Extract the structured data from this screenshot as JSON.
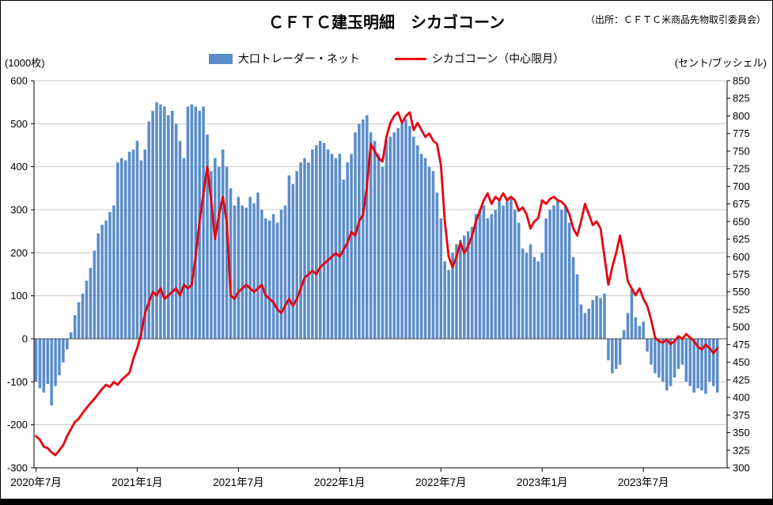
{
  "title": "ＣＦＴＣ建玉明細　シカゴコーン",
  "source_note": "（出所：ＣＦＴＣ米商品先物取引委員会）",
  "left_axis_unit": "(1000枚)",
  "right_axis_unit": "(セント/ブッシェル)",
  "legend": {
    "bars_label": "大口トレーダー・ネット",
    "line_label": "シカゴコーン（中心限月）"
  },
  "chart_data": {
    "type": "combo",
    "x_slots": 178,
    "x_ticks": [
      {
        "label": "2020年7月",
        "index": 0
      },
      {
        "label": "2021年1月",
        "index": 26
      },
      {
        "label": "2021年7月",
        "index": 52
      },
      {
        "label": "2022年1月",
        "index": 78
      },
      {
        "label": "2022年7月",
        "index": 104
      },
      {
        "label": "2023年1月",
        "index": 130
      },
      {
        "label": "2023年7月",
        "index": 156
      }
    ],
    "left_axis": {
      "min": -300,
      "max": 600,
      "step": 100,
      "unit": "(1000枚)",
      "ticks": [
        600,
        500,
        400,
        300,
        200,
        100,
        0,
        -100,
        -200,
        -300
      ]
    },
    "right_axis": {
      "min": 300,
      "max": 850,
      "step": 25,
      "unit": "(セント/ブッシェル)",
      "ticks": [
        850,
        825,
        800,
        775,
        750,
        725,
        700,
        675,
        650,
        625,
        600,
        575,
        550,
        525,
        500,
        475,
        450,
        425,
        400,
        375,
        350,
        325,
        300
      ]
    },
    "series": [
      {
        "name": "大口トレーダー・ネット",
        "type": "bar",
        "axis": "left",
        "color": "#5b8ccb",
        "values": [
          -100,
          -115,
          -125,
          -105,
          -155,
          -110,
          -85,
          -55,
          -25,
          15,
          55,
          85,
          105,
          135,
          165,
          205,
          245,
          265,
          275,
          295,
          310,
          410,
          420,
          415,
          435,
          440,
          460,
          415,
          440,
          505,
          530,
          550,
          545,
          540,
          520,
          530,
          500,
          460,
          420,
          540,
          545,
          540,
          530,
          540,
          475,
          390,
          420,
          400,
          440,
          400,
          350,
          310,
          330,
          310,
          305,
          330,
          315,
          340,
          300,
          280,
          275,
          290,
          270,
          300,
          310,
          380,
          360,
          390,
          410,
          420,
          410,
          440,
          450,
          460,
          455,
          440,
          430,
          420,
          430,
          370,
          410,
          430,
          480,
          500,
          510,
          520,
          480,
          460,
          430,
          400,
          460,
          470,
          480,
          490,
          500,
          510,
          495,
          470,
          450,
          430,
          420,
          400,
          390,
          340,
          280,
          180,
          160,
          200,
          220,
          230,
          240,
          250,
          260,
          290,
          300,
          310,
          280,
          290,
          300,
          320,
          310,
          320,
          330,
          300,
          270,
          210,
          200,
          220,
          190,
          180,
          200,
          280,
          300,
          310,
          320,
          300,
          310,
          270,
          190,
          150,
          80,
          60,
          70,
          90,
          100,
          95,
          105,
          -50,
          -80,
          -70,
          -60,
          20,
          60,
          115,
          50,
          30,
          40,
          -30,
          -60,
          -80,
          -90,
          -100,
          -120,
          -110,
          -90,
          -70,
          -60,
          -100,
          -110,
          -125,
          -115,
          -120,
          -128,
          -100,
          -110,
          -125
        ]
      },
      {
        "name": "シカゴコーン（中心限月）",
        "type": "line",
        "axis": "right",
        "color": "#e8000e",
        "values": [
          345,
          340,
          330,
          328,
          322,
          318,
          325,
          332,
          345,
          355,
          365,
          370,
          378,
          385,
          392,
          398,
          405,
          412,
          418,
          415,
          422,
          418,
          425,
          430,
          435,
          455,
          470,
          490,
          520,
          535,
          550,
          545,
          555,
          540,
          545,
          550,
          555,
          545,
          560,
          555,
          560,
          600,
          650,
          690,
          728,
          680,
          625,
          660,
          685,
          650,
          545,
          540,
          550,
          555,
          560,
          555,
          550,
          555,
          560,
          545,
          540,
          535,
          525,
          520,
          530,
          540,
          530,
          540,
          555,
          570,
          575,
          580,
          575,
          585,
          590,
          595,
          600,
          605,
          600,
          610,
          620,
          635,
          630,
          650,
          660,
          700,
          760,
          750,
          740,
          735,
          770,
          790,
          800,
          805,
          790,
          800,
          805,
          780,
          790,
          780,
          770,
          775,
          765,
          760,
          730,
          650,
          600,
          585,
          600,
          620,
          605,
          615,
          630,
          650,
          665,
          680,
          690,
          675,
          685,
          680,
          690,
          680,
          685,
          680,
          665,
          670,
          660,
          640,
          650,
          655,
          680,
          675,
          682,
          685,
          680,
          678,
          672,
          660,
          640,
          630,
          650,
          675,
          660,
          645,
          650,
          640,
          600,
          560,
          585,
          605,
          630,
          600,
          565,
          555,
          545,
          555,
          540,
          530,
          510,
          485,
          480,
          478,
          482,
          476,
          480,
          487,
          483,
          490,
          485,
          480,
          472,
          468,
          475,
          470,
          463,
          470
        ]
      }
    ]
  }
}
